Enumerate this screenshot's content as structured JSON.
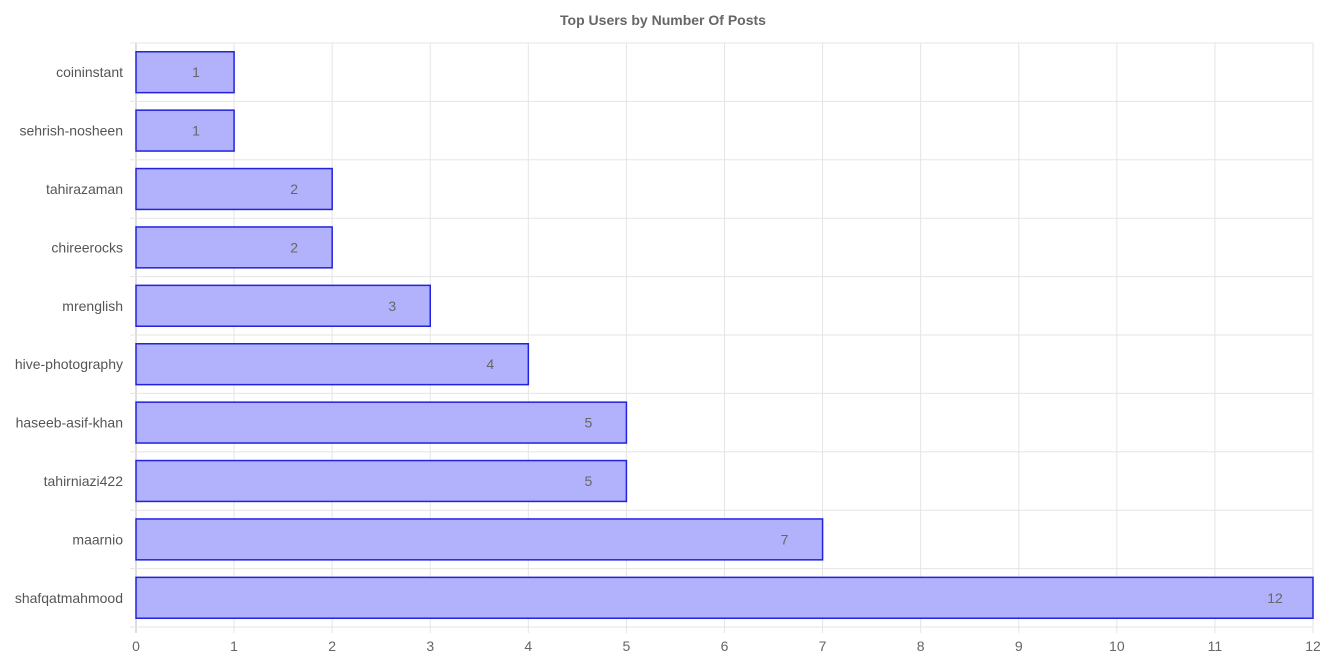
{
  "chart_data": {
    "type": "bar",
    "orientation": "horizontal",
    "title": "Top Users by Number Of Posts",
    "categories": [
      "coininstant",
      "sehrish-nosheen",
      "tahirazaman",
      "chireerocks",
      "mrenglish",
      "hive-photography",
      "haseeb-asif-khan",
      "tahirniazi422",
      "maarnio",
      "shafqatmahmood"
    ],
    "values": [
      1,
      1,
      2,
      2,
      3,
      4,
      5,
      5,
      7,
      12
    ],
    "data_labels": [
      "1",
      "1",
      "2",
      "2",
      "3",
      "4",
      "5",
      "5",
      "7",
      "12"
    ],
    "xlim": [
      0,
      12
    ],
    "x_ticks": [
      "0",
      "1",
      "2",
      "3",
      "4",
      "5",
      "6",
      "7",
      "8",
      "9",
      "10",
      "11",
      "12"
    ],
    "xlabel": "",
    "ylabel": "",
    "grid": true,
    "legend": "none",
    "colors": {
      "bar_fill": "#b2b2fc",
      "bar_stroke": "#2222dd",
      "grid": "#e5e5e5",
      "text": "#666666"
    }
  }
}
